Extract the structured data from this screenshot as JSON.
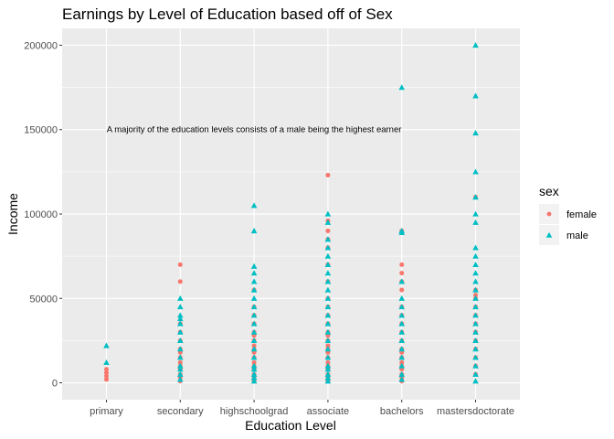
{
  "chart_data": {
    "type": "scatter",
    "title": "Earnings by Level of Education based off of Sex",
    "xlabel": "Education Level",
    "ylabel": "Income",
    "categories": [
      "primary",
      "secondary",
      "highschoolgrad",
      "associate",
      "bachelors",
      "mastersdoctorate"
    ],
    "ylim": [
      -10000,
      210000
    ],
    "yticks": [
      0,
      50000,
      100000,
      150000,
      200000
    ],
    "ytick_labels": [
      "0",
      "50000",
      "100000",
      "150000",
      "200000"
    ],
    "grid": true,
    "legend": {
      "title": "sex",
      "position": "right"
    },
    "annotation": {
      "text": "A majority of the education levels consists of a male being the highest earner",
      "x": "highschoolgrad",
      "y": 150000
    },
    "series": [
      {
        "name": "female",
        "color": "#F8766D",
        "marker": "circle",
        "points": {
          "primary": [
            2000,
            4000,
            6000,
            8000
          ],
          "secondary": [
            1000,
            3000,
            5000,
            8000,
            10000,
            12000,
            15000,
            18000,
            20000,
            25000,
            30000,
            35000,
            60000,
            70000
          ],
          "highschoolgrad": [
            1000,
            3000,
            5000,
            8000,
            10000,
            12000,
            15000,
            18000,
            20000,
            22000,
            25000,
            28000,
            30000,
            35000,
            40000,
            45000,
            55000
          ],
          "associate": [
            1000,
            3000,
            5000,
            8000,
            10000,
            12000,
            15000,
            18000,
            20000,
            22000,
            25000,
            28000,
            30000,
            35000,
            40000,
            45000,
            50000,
            60000,
            70000,
            80000,
            85000,
            90000,
            96000,
            123000
          ],
          "bachelors": [
            1000,
            3000,
            5000,
            8000,
            10000,
            12000,
            15000,
            18000,
            20000,
            25000,
            30000,
            35000,
            40000,
            45000,
            55000,
            60000,
            65000,
            70000,
            90000
          ],
          "mastersdoctorate": [
            5000,
            10000,
            15000,
            20000,
            25000,
            30000,
            35000,
            40000,
            45000,
            50000,
            52000,
            55000,
            110000
          ]
        }
      },
      {
        "name": "male",
        "color": "#00BFC4",
        "marker": "triangle",
        "points": {
          "primary": [
            12000,
            22000
          ],
          "secondary": [
            2000,
            5000,
            8000,
            10000,
            15000,
            20000,
            25000,
            30000,
            35000,
            38000,
            40000,
            45000,
            50000
          ],
          "highschoolgrad": [
            1000,
            3000,
            5000,
            8000,
            10000,
            15000,
            20000,
            25000,
            30000,
            35000,
            40000,
            45000,
            50000,
            55000,
            60000,
            65000,
            69000,
            90000,
            105000
          ],
          "associate": [
            1000,
            3000,
            5000,
            8000,
            10000,
            15000,
            20000,
            25000,
            30000,
            35000,
            40000,
            45000,
            50000,
            55000,
            60000,
            65000,
            70000,
            75000,
            80000,
            85000,
            95000,
            100000
          ],
          "bachelors": [
            2000,
            5000,
            10000,
            15000,
            20000,
            25000,
            30000,
            35000,
            40000,
            45000,
            50000,
            60000,
            89000,
            90000,
            175000
          ],
          "mastersdoctorate": [
            1000,
            5000,
            10000,
            15000,
            20000,
            25000,
            30000,
            35000,
            40000,
            45000,
            50000,
            55000,
            60000,
            65000,
            70000,
            75000,
            80000,
            95000,
            100000,
            110000,
            125000,
            148000,
            170000,
            200000
          ]
        }
      }
    ]
  }
}
